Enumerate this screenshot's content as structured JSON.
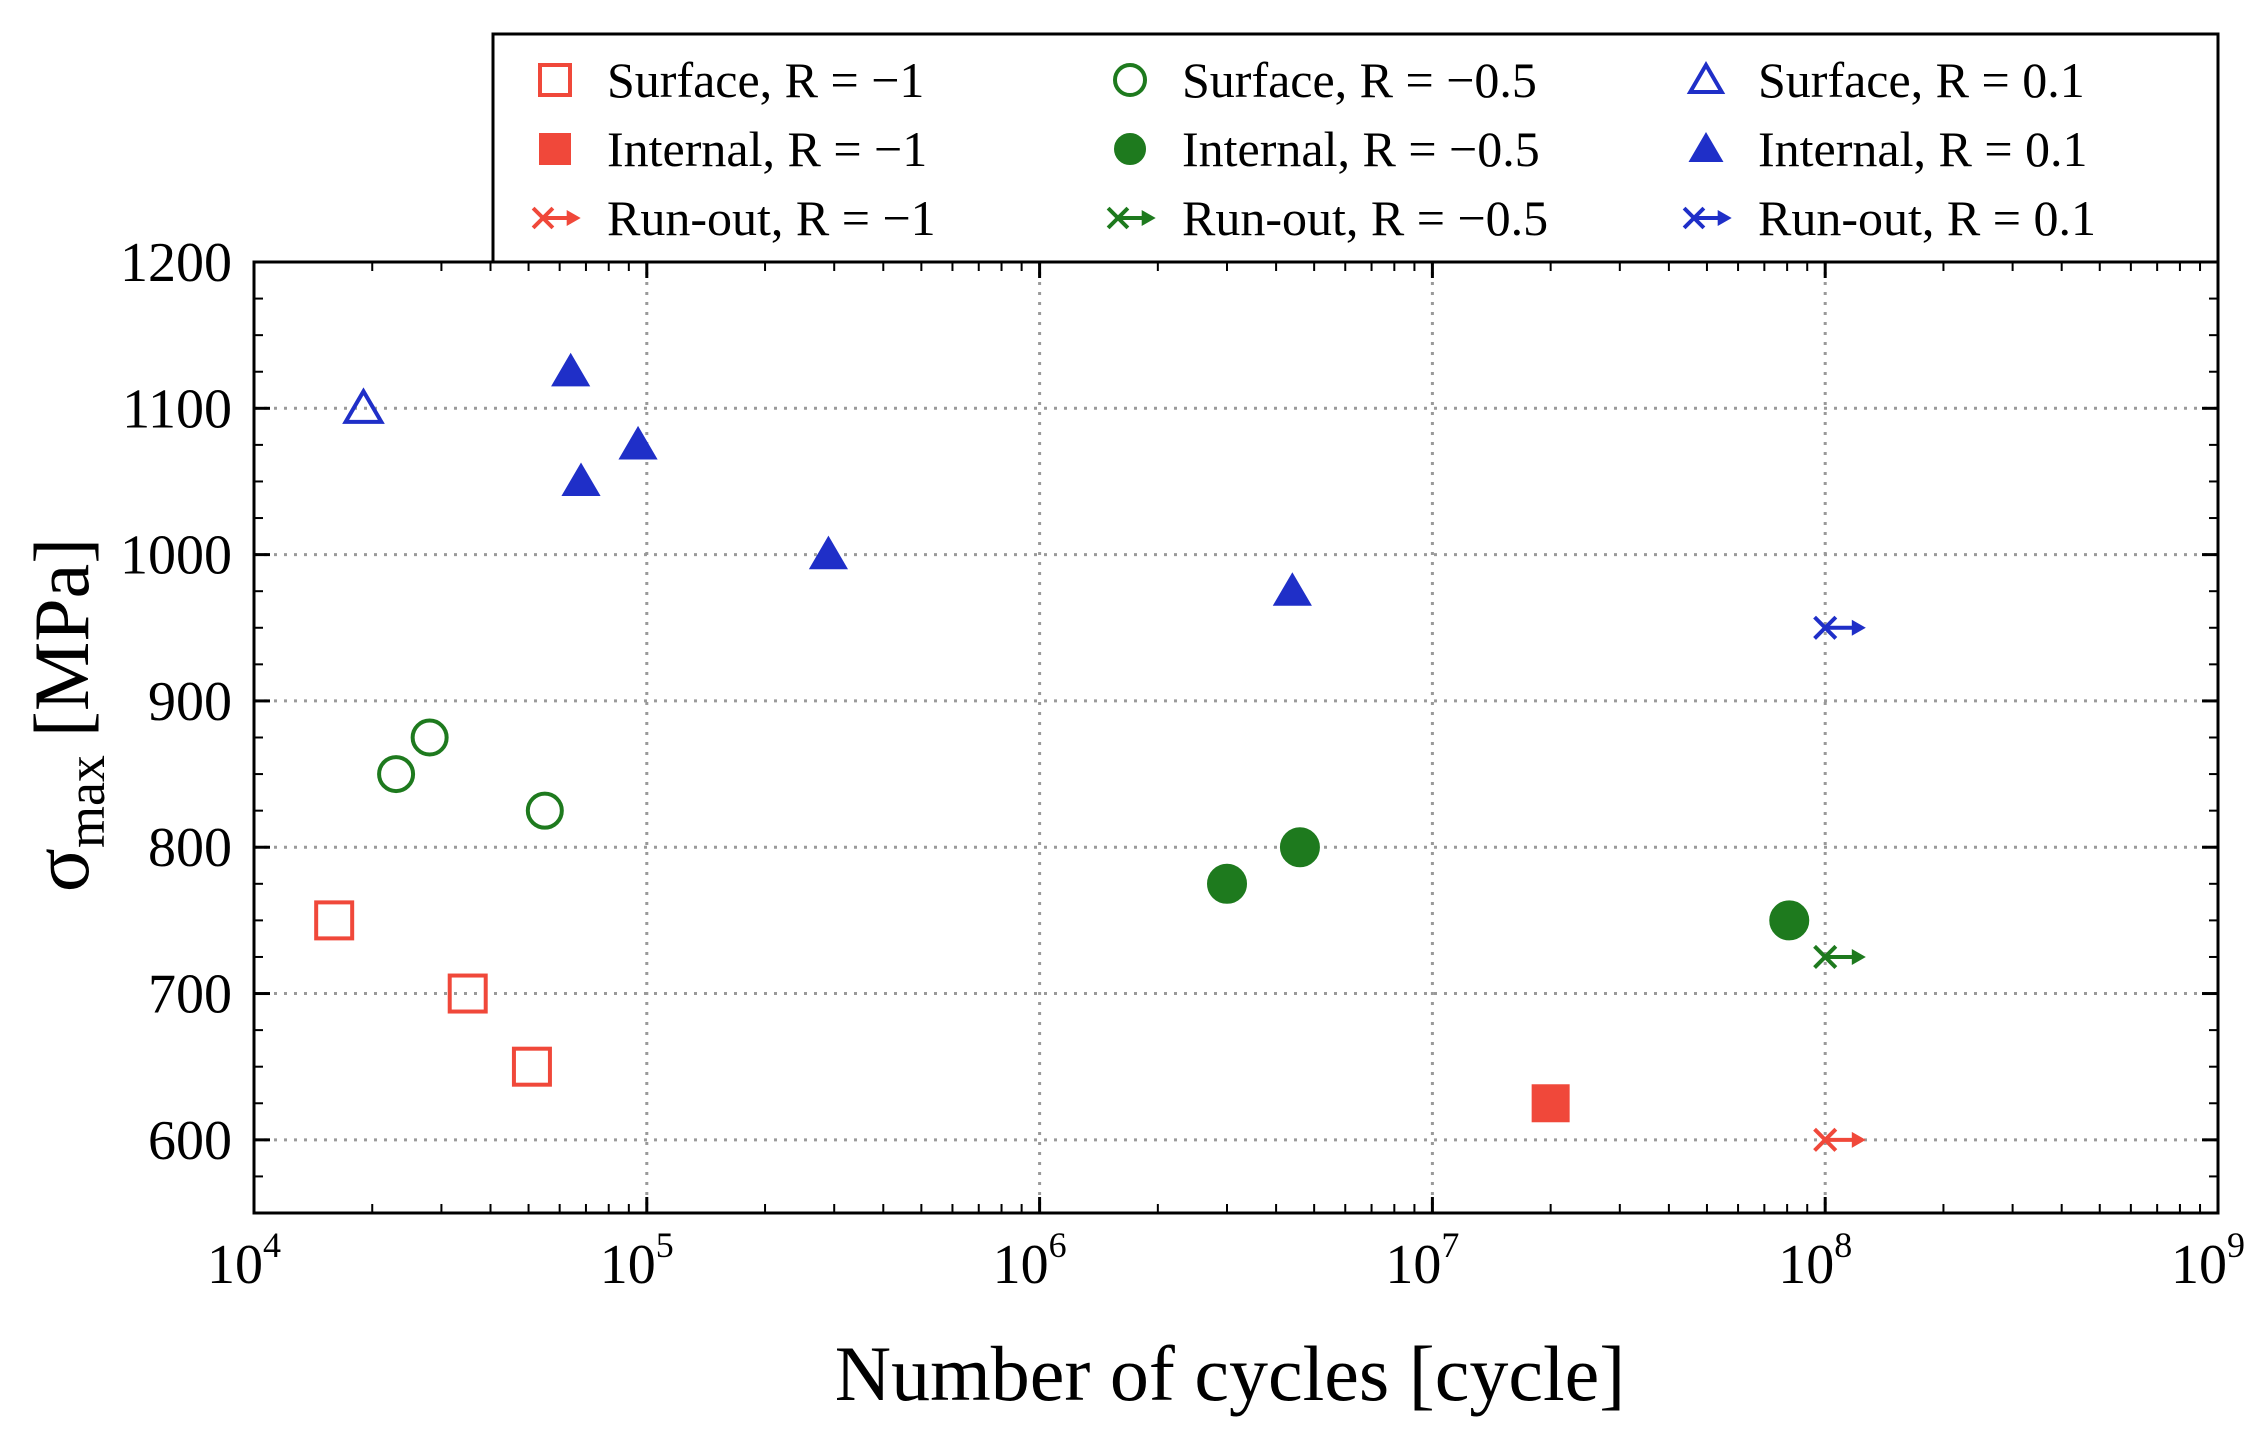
{
  "chart_data": {
    "type": "scatter",
    "xscale": "log",
    "xlabel": "Number of cycles [cycle]",
    "ylabel": {
      "symbol": "σ",
      "subscript": "max",
      "unit": "[MPa]"
    },
    "xlim": [
      10000,
      1000000000
    ],
    "ylim": [
      550,
      1200
    ],
    "x_ticks": [
      {
        "base": "10",
        "exp": "4",
        "value": 10000
      },
      {
        "base": "10",
        "exp": "5",
        "value": 100000
      },
      {
        "base": "10",
        "exp": "6",
        "value": 1000000
      },
      {
        "base": "10",
        "exp": "7",
        "value": 10000000
      },
      {
        "base": "10",
        "exp": "8",
        "value": 100000000
      },
      {
        "base": "10",
        "exp": "9",
        "value": 1000000000
      }
    ],
    "y_ticks": [
      "600",
      "700",
      "800",
      "900",
      "1000",
      "1100",
      "1200"
    ],
    "grid": "dotted",
    "legend_position": "top",
    "series": [
      {
        "name": "Surface, R = −1",
        "marker": "square-open",
        "color": "#f0483a",
        "points": [
          [
            16000,
            750
          ],
          [
            35000,
            700
          ],
          [
            51000,
            650
          ]
        ]
      },
      {
        "name": "Internal, R = −1",
        "marker": "square-filled",
        "color": "#f0483a",
        "points": [
          [
            20000000,
            625
          ]
        ]
      },
      {
        "name": "Run-out, R = −1",
        "marker": "runout",
        "color": "#f0483a",
        "points": [
          [
            100000000,
            600
          ]
        ]
      },
      {
        "name": "Surface, R = −0.5",
        "marker": "circle-open",
        "color": "#1e7a1e",
        "points": [
          [
            23000,
            850
          ],
          [
            28000,
            875
          ],
          [
            55000,
            825
          ]
        ]
      },
      {
        "name": "Internal, R = −0.5",
        "marker": "circle-filled",
        "color": "#1e7a1e",
        "points": [
          [
            3000000,
            775
          ],
          [
            4600000,
            800
          ],
          [
            81000000,
            750
          ]
        ]
      },
      {
        "name": "Run-out, R = −0.5",
        "marker": "runout",
        "color": "#1e7a1e",
        "points": [
          [
            100000000,
            725
          ]
        ]
      },
      {
        "name": "Surface, R = 0.1",
        "marker": "triangle-open",
        "color": "#1f2fc8",
        "points": [
          [
            19000,
            1100
          ]
        ]
      },
      {
        "name": "Internal, R = 0.1",
        "marker": "triangle-filled",
        "color": "#1f2fc8",
        "points": [
          [
            64000,
            1125
          ],
          [
            68000,
            1050
          ],
          [
            95000,
            1075
          ],
          [
            290000,
            1000
          ],
          [
            4400000,
            975
          ]
        ]
      },
      {
        "name": "Run-out, R = 0.1",
        "marker": "runout",
        "color": "#1f2fc8",
        "points": [
          [
            100000000,
            950
          ]
        ]
      }
    ]
  }
}
